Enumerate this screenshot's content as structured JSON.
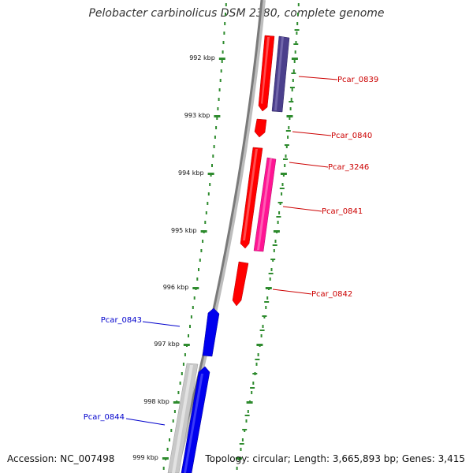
{
  "title": "Pelobacter carbinolicus DSM 2380, complete genome",
  "footer": {
    "accession": "Accession: NC_007498",
    "summary": "Topology: circular; Length: 3,665,893 bp; Genes: 3,415"
  },
  "colors": {
    "backbone": "#8c8c8c",
    "tick_dots": "#2e8b2e",
    "gene_red": "#ff0000",
    "gene_navy": "#4b3f8c",
    "gene_pink": "#ff1493",
    "gene_blue": "#0000ee",
    "gene_gray": "#c8c8c8",
    "label_red": "#cc0000",
    "label_blue": "#0000cc"
  },
  "scale_labels": [
    "992 kbp",
    "993 kbp",
    "994 kbp",
    "995 kbp",
    "996 kbp",
    "997 kbp",
    "998 kbp",
    "999 kbp"
  ],
  "gene_labels": [
    {
      "text": "Pcar_0839",
      "color": "red"
    },
    {
      "text": "Pcar_0840",
      "color": "red"
    },
    {
      "text": "Pcar_3246",
      "color": "red"
    },
    {
      "text": "Pcar_0841",
      "color": "red"
    },
    {
      "text": "Pcar_0842",
      "color": "red"
    },
    {
      "text": "Pcar_0843",
      "color": "blue"
    },
    {
      "text": "Pcar_0844",
      "color": "blue"
    }
  ]
}
